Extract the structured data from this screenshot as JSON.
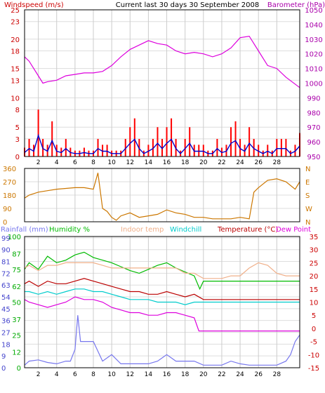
{
  "header": {
    "left_label": "Windspeed (m/s)",
    "center_label": "Current last 30 days 30 September 2008",
    "right_label": "Barometer (hPa)"
  },
  "legend3": {
    "rainfall": "Rainfall (mm)",
    "humidity": "Humidity %",
    "indoor": "Indoor temp",
    "windchill": "Windchill",
    "temperature": "Temperature (°C)",
    "dewpoint": "Dew Point"
  },
  "colors": {
    "wind_gust": "#ff0000",
    "wind_avg": "#0000cc",
    "barometer": "#dd00dd",
    "direction": "#cc7700",
    "humidity": "#00bb00",
    "indoor": "#f0b08a",
    "windchill": "#00cccc",
    "temperature": "#bb0000",
    "dewpoint": "#dd00dd",
    "rainfall": "#7777ee",
    "right_axis3": "#cc0000",
    "left_axis1": "#cc0000",
    "right_axis1": "#aa00aa",
    "left_axis3": "#4444cc"
  },
  "chart_data": [
    {
      "type": "line",
      "id": "wind-barometer",
      "x_range": [
        0.5,
        30.5
      ],
      "x_ticks": [
        2,
        4,
        6,
        8,
        10,
        12,
        14,
        16,
        18,
        20,
        22,
        24,
        26,
        28
      ],
      "y_left_ticks": [
        0,
        3,
        5,
        8,
        10,
        13,
        15,
        18,
        20,
        23,
        25
      ],
      "ylim_left": [
        0,
        25
      ],
      "y_right_ticks": [
        950,
        960,
        970,
        980,
        990,
        1000,
        1010,
        1020,
        1030,
        1040,
        1050
      ],
      "ylim_right": [
        950,
        1050
      ],
      "grid": true,
      "series": [
        {
          "name": "Barometer (hPa)",
          "axis": "right",
          "x": [
            0.5,
            1,
            2,
            2.5,
            3,
            4,
            5,
            6,
            7,
            8,
            9,
            10,
            11,
            12,
            13,
            14,
            15,
            16,
            17,
            18,
            19,
            20,
            21,
            22,
            23,
            24,
            25,
            26,
            27,
            28,
            29,
            30.5
          ],
          "values": [
            1018,
            1015,
            1005,
            1000,
            1001,
            1002,
            1005,
            1006,
            1007,
            1007,
            1008,
            1012,
            1018,
            1023,
            1026,
            1029,
            1027,
            1026,
            1022,
            1020,
            1021,
            1020,
            1018,
            1020,
            1024,
            1031,
            1032,
            1022,
            1012,
            1010,
            1004,
            997
          ]
        },
        {
          "name": "Windspeed (m/s)",
          "axis": "left",
          "x": [
            0.5,
            1,
            1.5,
            2,
            2.5,
            3,
            3.5,
            4,
            4.5,
            5,
            5.5,
            6,
            6.5,
            7,
            7.5,
            8,
            8.5,
            9,
            9.5,
            10,
            10.5,
            11,
            11.5,
            12,
            12.5,
            13,
            13.5,
            14,
            14.5,
            15,
            15.5,
            16,
            16.5,
            17,
            17.5,
            18,
            18.5,
            19,
            19.5,
            20,
            20.5,
            21,
            21.5,
            22,
            22.5,
            23,
            23.5,
            24,
            24.5,
            25,
            25.5,
            26,
            26.5,
            27,
            27.5,
            28,
            28.5,
            29,
            29.5,
            30,
            30.5
          ],
          "values": [
            1.5,
            3,
            2,
            8,
            3,
            2,
            6,
            2,
            1.5,
            3,
            1.5,
            1,
            1,
            1.5,
            1,
            1,
            3,
            2,
            2,
            1,
            1,
            1,
            3,
            5,
            6.5,
            3,
            1,
            2,
            3,
            5,
            3,
            5,
            6.5,
            3,
            1,
            3,
            5,
            2,
            2,
            2,
            1,
            1,
            3,
            1.5,
            2,
            5,
            6,
            3,
            2,
            5,
            3,
            2,
            1,
            2,
            1,
            3,
            3,
            3,
            1,
            2,
            4
          ]
        }
      ]
    },
    {
      "type": "line",
      "id": "wind-direction",
      "x_range": [
        0.5,
        30.5
      ],
      "y_left_ticks": [
        0,
        90,
        180,
        270,
        360
      ],
      "ylim": [
        0,
        360
      ],
      "y_right_ticks": [
        "N",
        "E",
        "S",
        "W",
        "N"
      ],
      "grid": true,
      "series": [
        {
          "name": "Wind direction",
          "x": [
            0.5,
            1,
            2,
            3,
            4,
            5,
            6,
            7,
            8,
            8.5,
            9,
            9.5,
            10,
            10.5,
            11,
            11.5,
            12,
            13,
            14,
            15,
            16,
            17,
            18,
            19,
            20,
            21,
            22,
            23,
            24,
            25,
            25.5,
            26,
            27,
            28,
            29,
            30,
            30.5
          ],
          "values": [
            160,
            180,
            200,
            210,
            220,
            225,
            230,
            230,
            220,
            330,
            90,
            70,
            30,
            10,
            40,
            50,
            60,
            30,
            40,
            50,
            80,
            60,
            50,
            30,
            30,
            20,
            20,
            20,
            30,
            20,
            200,
            230,
            280,
            290,
            270,
            220,
            270
          ]
        }
      ]
    },
    {
      "type": "line",
      "id": "humidity-temperature-rain",
      "x_range": [
        0.5,
        30.5
      ],
      "x_ticks": [
        2,
        4,
        6,
        8,
        10,
        12,
        14,
        16,
        18,
        20,
        22,
        24,
        26,
        28
      ],
      "y_left_ticks": [
        0,
        9,
        18,
        27,
        36,
        45,
        54,
        63,
        72,
        81,
        90,
        99
      ],
      "y_left_extra_ticks": [
        100,
        87,
        75,
        62,
        50,
        37,
        25,
        12,
        0
      ],
      "ylim_left": [
        0,
        100
      ],
      "y_right_ticks": [
        35,
        30,
        25,
        20,
        15,
        10,
        5,
        0,
        -5,
        -10,
        -15
      ],
      "ylim_right": [
        -15,
        35
      ],
      "grid": true,
      "series": [
        {
          "name": "Humidity %",
          "axis": "left",
          "x": [
            0.5,
            1,
            2,
            3,
            4,
            5,
            6,
            7,
            8,
            9,
            10,
            11,
            12,
            13,
            14,
            15,
            16,
            17,
            18,
            19,
            19.6,
            20,
            21,
            22,
            23,
            24,
            25,
            26,
            27,
            28,
            29,
            30.5
          ],
          "values": [
            75,
            80,
            75,
            85,
            80,
            82,
            86,
            88,
            84,
            82,
            80,
            77,
            74,
            72,
            75,
            78,
            80,
            76,
            73,
            70,
            60,
            66,
            66,
            66,
            66,
            66,
            66,
            66,
            66,
            66,
            66,
            66
          ]
        },
        {
          "name": "Indoor temp",
          "axis": "right",
          "x": [
            0.5,
            1,
            2,
            3,
            4,
            5,
            6,
            7,
            8,
            9,
            10,
            11,
            12,
            13,
            14,
            15,
            16,
            17,
            18,
            19,
            20,
            21,
            22,
            23,
            24,
            25,
            26,
            27,
            28,
            29,
            30.5
          ],
          "values": [
            23,
            24,
            22,
            24,
            24,
            25,
            25,
            25,
            25,
            24,
            23,
            23,
            23,
            23,
            23,
            23,
            23,
            23,
            21,
            21,
            19,
            19,
            19,
            20,
            20,
            23,
            25,
            24,
            21,
            20,
            20
          ]
        },
        {
          "name": "Windchill",
          "axis": "right",
          "x": [
            0.5,
            1,
            2,
            3,
            4,
            5,
            6,
            7,
            8,
            9,
            10,
            11,
            12,
            13,
            14,
            15,
            16,
            17,
            18,
            19,
            20,
            21,
            22,
            23,
            24,
            25,
            26,
            27,
            28,
            29,
            30.5
          ],
          "values": [
            14,
            14,
            13,
            14,
            13,
            14,
            15,
            15,
            14,
            14,
            13,
            12,
            11,
            11,
            11,
            10,
            10,
            10,
            9,
            10,
            10,
            10,
            10,
            10,
            10,
            10,
            10,
            10,
            10,
            10,
            10
          ]
        },
        {
          "name": "Temperature (°C)",
          "axis": "right",
          "x": [
            0.5,
            1,
            2,
            3,
            4,
            5,
            6,
            7,
            8,
            9,
            10,
            11,
            12,
            13,
            14,
            15,
            16,
            17,
            18,
            19,
            20,
            21,
            22,
            23,
            24,
            25,
            26,
            27,
            28,
            29,
            30.5
          ],
          "values": [
            17,
            18,
            16,
            18,
            17,
            17,
            18,
            19,
            18,
            17,
            16,
            15,
            14,
            14,
            13,
            13,
            14,
            13,
            12,
            13,
            11,
            11,
            11,
            11,
            11,
            11,
            11,
            11,
            11,
            11,
            11
          ]
        },
        {
          "name": "Dew Point",
          "axis": "right",
          "x": [
            0.5,
            1,
            2,
            3,
            4,
            5,
            6,
            7,
            8,
            9,
            10,
            11,
            12,
            13,
            14,
            15,
            16,
            17,
            18,
            19,
            19.5,
            20,
            21,
            22,
            23,
            24,
            25,
            26,
            27,
            28,
            29,
            30,
            30.5
          ],
          "values": [
            11,
            10,
            9,
            8,
            9,
            10,
            12,
            11,
            11,
            10,
            8,
            7,
            6,
            6,
            5,
            5,
            6,
            6,
            5,
            4,
            -1,
            -1,
            -1,
            -1,
            -1,
            -1,
            -1,
            -1,
            -1,
            -1,
            -1,
            -1,
            -1
          ]
        },
        {
          "name": "Rainfall (mm)",
          "axis": "left",
          "x": [
            0.5,
            1,
            2,
            3,
            4,
            5,
            5.5,
            6,
            6.3,
            6.6,
            7,
            8,
            9,
            10,
            11,
            12,
            13,
            14,
            15,
            16,
            17,
            18,
            19,
            20,
            21,
            22,
            23,
            24,
            25,
            26,
            27,
            28,
            29,
            29.5,
            30,
            30.5
          ],
          "values": [
            2,
            5,
            6,
            4,
            3,
            5,
            5,
            14,
            40,
            20,
            20,
            20,
            5,
            10,
            3,
            3,
            3,
            3,
            5,
            10,
            5,
            5,
            5,
            2,
            2,
            2,
            5,
            3,
            2,
            2,
            2,
            2,
            5,
            10,
            20,
            25
          ]
        }
      ]
    }
  ]
}
